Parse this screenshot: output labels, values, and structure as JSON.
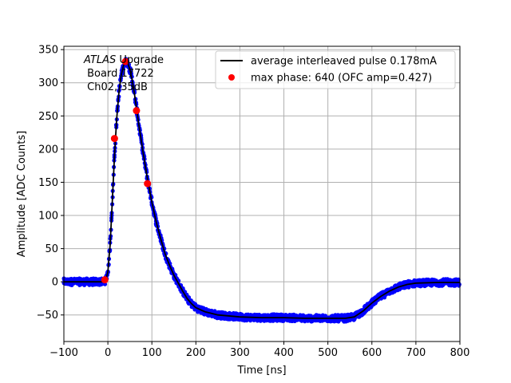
{
  "chart_data": {
    "type": "scatter",
    "xlabel": "Time [ns]",
    "ylabel": "Amplitude [ADC Counts]",
    "xlim": [
      -100,
      800
    ],
    "ylim": [
      -90,
      355
    ],
    "x_ticks": [
      -100,
      0,
      100,
      200,
      300,
      400,
      500,
      600,
      700,
      800
    ],
    "y_ticks": [
      -50,
      0,
      50,
      100,
      150,
      200,
      250,
      300,
      350
    ],
    "grid": true,
    "legend_placement": "upper right",
    "annotation": {
      "line1_italic": "ATLAS",
      "line1_rest": " Upgrade",
      "line2": " Board 17722",
      "line3": " Ch02, 35dB"
    },
    "series": [
      {
        "name": "average interleaved pulse 0.178mA",
        "kind": "line",
        "color": "#000000",
        "points": [
          [
            -100,
            0
          ],
          [
            -10,
            0
          ],
          [
            -5,
            2
          ],
          [
            0,
            15
          ],
          [
            5,
            55
          ],
          [
            10,
            120
          ],
          [
            15,
            190
          ],
          [
            20,
            245
          ],
          [
            25,
            285
          ],
          [
            30,
            310
          ],
          [
            35,
            325
          ],
          [
            40,
            332
          ],
          [
            45,
            330
          ],
          [
            50,
            320
          ],
          [
            55,
            305
          ],
          [
            60,
            285
          ],
          [
            65,
            262
          ],
          [
            70,
            238
          ],
          [
            80,
            195
          ],
          [
            90,
            155
          ],
          [
            100,
            120
          ],
          [
            110,
            90
          ],
          [
            120,
            65
          ],
          [
            130,
            42
          ],
          [
            140,
            25
          ],
          [
            150,
            10
          ],
          [
            160,
            -2
          ],
          [
            170,
            -14
          ],
          [
            180,
            -25
          ],
          [
            190,
            -33
          ],
          [
            200,
            -39
          ],
          [
            220,
            -45
          ],
          [
            250,
            -50
          ],
          [
            300,
            -53
          ],
          [
            350,
            -54
          ],
          [
            400,
            -54
          ],
          [
            450,
            -55
          ],
          [
            500,
            -55
          ],
          [
            540,
            -55
          ],
          [
            560,
            -53
          ],
          [
            580,
            -44
          ],
          [
            600,
            -32
          ],
          [
            620,
            -22
          ],
          [
            640,
            -14
          ],
          [
            660,
            -8
          ],
          [
            680,
            -4
          ],
          [
            700,
            -2
          ],
          [
            750,
            -1
          ],
          [
            800,
            -1
          ]
        ]
      },
      {
        "name": "max phase: 640 (OFC amp=0.427)",
        "kind": "markers",
        "color": "#ff0000",
        "points": [
          [
            -7,
            3
          ],
          [
            15,
            216
          ],
          [
            40,
            332
          ],
          [
            65,
            258
          ],
          [
            90,
            148
          ]
        ]
      },
      {
        "name": "",
        "kind": "samples",
        "color": "#0000ff",
        "noise_amplitude": 5
      }
    ]
  }
}
